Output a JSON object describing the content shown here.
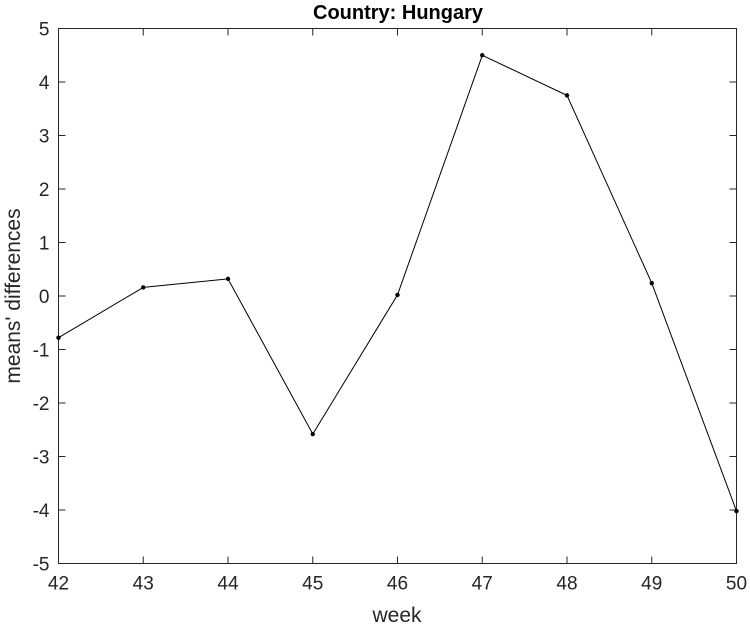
{
  "chart_data": {
    "type": "line",
    "title": "Country: Hungary",
    "xlabel": "week",
    "ylabel": "means' differences",
    "xlim": [
      42,
      50
    ],
    "ylim": [
      -5,
      5
    ],
    "xticks": [
      42,
      43,
      44,
      45,
      46,
      47,
      48,
      49,
      50
    ],
    "yticks": [
      -5,
      -4,
      -3,
      -2,
      -1,
      0,
      1,
      2,
      3,
      4,
      5
    ],
    "grid": false,
    "series": [
      {
        "x": [
          42,
          43,
          44,
          45,
          46,
          47,
          48,
          49,
          50
        ],
        "y": [
          -0.78,
          0.16,
          0.32,
          -2.58,
          0.02,
          4.5,
          3.75,
          0.24,
          -4.02
        ],
        "color": "#000000",
        "marker": "dot"
      }
    ]
  }
}
